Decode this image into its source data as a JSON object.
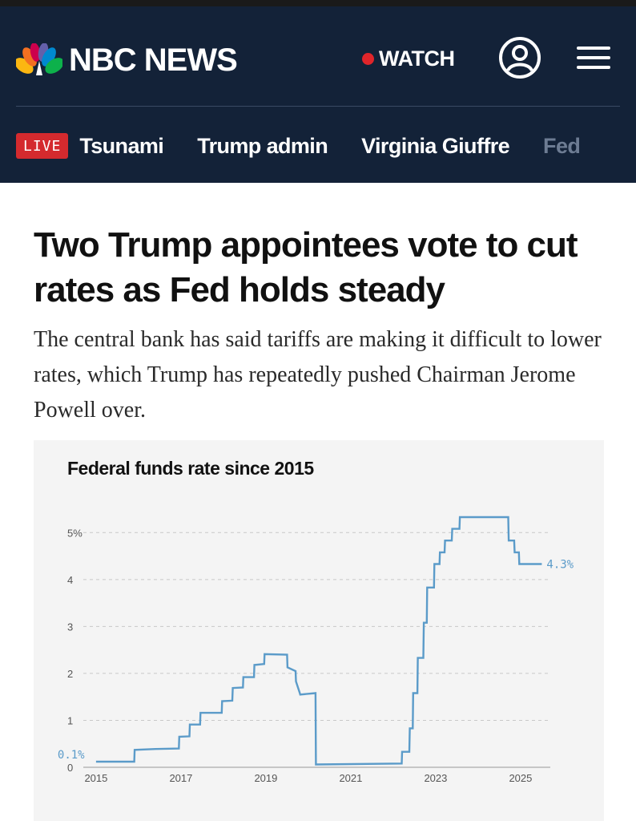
{
  "header": {
    "brand": "NBC NEWS",
    "watch_label": "WATCH",
    "live_label": "LIVE",
    "nav_items": [
      "Tsunami",
      "Trump admin",
      "Virginia Giuffre",
      "Fed"
    ],
    "background_color": "#132238",
    "live_color": "#d42a2e"
  },
  "icons": {
    "logo": "peacock-icon",
    "account": "account-icon",
    "menu": "hamburger-menu-icon"
  },
  "article": {
    "headline": "Two Trump appointees vote to cut rates as Fed holds steady",
    "dek": "The central bank has said tariffs are making it difficult to lower rates, which Trump has repeatedly pushed Chairman Jerome Powell over."
  },
  "chart_data": {
    "type": "line",
    "title": "Federal funds rate since 2015",
    "xlabel": "",
    "ylabel": "",
    "x_ticks": [
      "2015",
      "2017",
      "2019",
      "2021",
      "2023",
      "2025"
    ],
    "y_ticks": [
      "0",
      "1",
      "2",
      "3",
      "4",
      "5%"
    ],
    "ylim": [
      0,
      5.5
    ],
    "xlim": [
      2014.7,
      2025.7
    ],
    "grid": "horizontal dashed",
    "line_color": "#5b9bc9",
    "annotations": [
      "0.1%",
      "4.3%"
    ],
    "series": [
      {
        "x": [
          2015.0,
          2015.33,
          2015.34,
          2015.9,
          2015.91,
          2016.4,
          2016.95,
          2016.96,
          2017.2,
          2017.21,
          2017.45,
          2017.46,
          2017.96,
          2017.97,
          2018.21,
          2018.22,
          2018.46,
          2018.47,
          2018.72,
          2018.73,
          2018.96,
          2018.97,
          2019.5,
          2019.51,
          2019.7,
          2019.71,
          2019.8,
          2019.81,
          2020.17,
          2020.18,
          2022.2,
          2022.21,
          2022.38,
          2022.39,
          2022.46,
          2022.47,
          2022.57,
          2022.58,
          2022.71,
          2022.72,
          2022.79,
          2022.8,
          2022.96,
          2022.97,
          2023.09,
          2023.1,
          2023.21,
          2023.22,
          2023.38,
          2023.39,
          2023.56,
          2023.57,
          2024.71,
          2024.72,
          2024.85,
          2024.86,
          2024.96,
          2024.97,
          2025.5
        ],
        "y": [
          0.12,
          0.12,
          0.12,
          0.12,
          0.37,
          0.39,
          0.4,
          0.65,
          0.66,
          0.91,
          0.91,
          1.16,
          1.16,
          1.41,
          1.42,
          1.69,
          1.7,
          1.92,
          1.92,
          2.18,
          2.2,
          2.41,
          2.4,
          2.13,
          2.05,
          1.83,
          1.58,
          1.55,
          1.58,
          0.06,
          0.08,
          0.33,
          0.33,
          0.83,
          0.83,
          1.58,
          1.58,
          2.33,
          2.33,
          3.08,
          3.08,
          3.83,
          3.83,
          4.33,
          4.33,
          4.58,
          4.58,
          4.83,
          4.83,
          5.08,
          5.08,
          5.33,
          5.33,
          4.83,
          4.83,
          4.58,
          4.58,
          4.33,
          4.33
        ]
      }
    ]
  }
}
